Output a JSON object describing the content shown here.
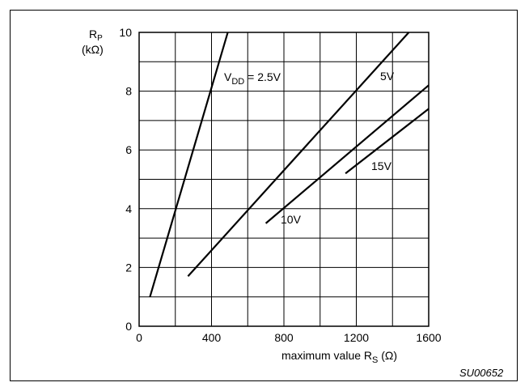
{
  "chart_data": {
    "type": "line",
    "ylabel": {
      "main": "R",
      "sub": "P",
      "unit": "(kΩ)"
    },
    "xlabel": {
      "main": "maximum value R",
      "sub": "S",
      "unit": " (Ω)"
    },
    "xlim": [
      0,
      1600
    ],
    "ylim": [
      0,
      10
    ],
    "xticks": [
      0,
      400,
      800,
      1200,
      1600
    ],
    "yticks": [
      0,
      2,
      4,
      6,
      8,
      10
    ],
    "grid": true,
    "series": [
      {
        "name": "V_DD = 2.5V",
        "points": [
          [
            60,
            1.0
          ],
          [
            490,
            10.0
          ]
        ]
      },
      {
        "name": "5V",
        "points": [
          [
            270,
            1.7
          ],
          [
            1490,
            10.0
          ]
        ]
      },
      {
        "name": "10V",
        "points": [
          [
            700,
            3.5
          ],
          [
            1600,
            8.2
          ]
        ]
      },
      {
        "name": "15V",
        "points": [
          [
            1140,
            5.2
          ],
          [
            1600,
            7.4
          ]
        ]
      }
    ],
    "series_labels": [
      {
        "series": 0,
        "main": "V",
        "sub": "DD",
        "rest": " = 2.5V"
      },
      {
        "series": 1,
        "text": "5V"
      },
      {
        "series": 2,
        "text": "10V"
      },
      {
        "series": 3,
        "text": "15V"
      }
    ]
  },
  "figure_code": "SU00652"
}
